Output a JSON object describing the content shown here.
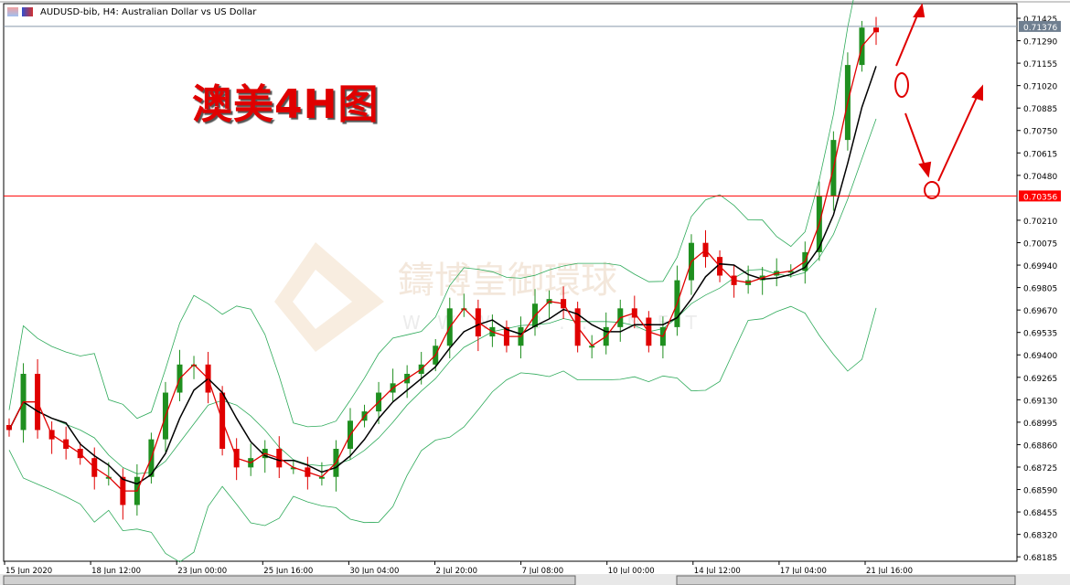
{
  "window": {
    "title": "AUDUSD-bib, H4:  Australian Dollar vs US Dollar"
  },
  "annotation": {
    "text": "澳美4H图"
  },
  "watermark": {
    "text": "鑄博皇御環球",
    "sub": "W W W . B . . . N E T"
  },
  "colors": {
    "up": "#1f8f1f",
    "down": "#e00000",
    "ma_fast": "#e00000",
    "ma_slow": "#000000",
    "bands": "#2eaa5a",
    "hline": "#ff0000",
    "bid_badge": "#6f7f90"
  },
  "chart_data": {
    "type": "candlestick",
    "symbol": "AUDUSD-bib",
    "timeframe": "H4",
    "closes": [
      0.68948,
      0.69286,
      0.68948,
      0.68892,
      0.68835,
      0.68779,
      0.68666,
      0.68666,
      0.68497,
      0.68666,
      0.68892,
      0.69173,
      0.69342,
      0.69342,
      0.69173,
      0.68835,
      0.68723,
      0.68779,
      0.68835,
      0.68723,
      0.68723,
      0.68666,
      0.68666,
      0.68835,
      0.69004,
      0.6906,
      0.69173,
      0.69229,
      0.69286,
      0.69342,
      0.69455,
      0.6968,
      0.6968,
      0.69511,
      0.69567,
      0.69455,
      0.69567,
      0.69708,
      0.69736,
      0.6968,
      0.69455,
      0.69455,
      0.69567,
      0.6968,
      0.69624,
      0.69455,
      0.69567,
      0.69849,
      0.70074,
      0.69989,
      0.69877,
      0.6982,
      0.69849,
      0.69877,
      0.69905,
      0.69905,
      0.70018,
      0.70355,
      0.70693,
      0.71144,
      0.71369,
      0.71341
    ],
    "y_ticks": [
      "0.71425",
      "0.71290",
      "0.71155",
      "0.71020",
      "0.70885",
      "0.70750",
      "0.70615",
      "0.70480",
      "0.70210",
      "0.70075",
      "0.69940",
      "0.69805",
      "0.69670",
      "0.69535",
      "0.69400",
      "0.69265",
      "0.69130",
      "0.68995",
      "0.68860",
      "0.68725",
      "0.68590",
      "0.68455",
      "0.68320",
      "0.68185"
    ],
    "ylim": [
      0.6812,
      0.7158
    ],
    "x_ticks": [
      "15 Jun 2020",
      "18 Jun 12:00",
      "23 Jun 00:00",
      "25 Jun 16:00",
      "30 Jun 04:00",
      "2 Jul 20:00",
      "7 Jul 08:00",
      "10 Jul 00:00",
      "14 Jul 12:00",
      "17 Jul 04:00",
      "21 Jul 16:00"
    ],
    "current_price": "0.71376",
    "horizontal_line": "0.70356",
    "indicators": [
      "moving average (red)",
      "moving average (black)",
      "bollinger bands (green)"
    ],
    "grid": false
  }
}
